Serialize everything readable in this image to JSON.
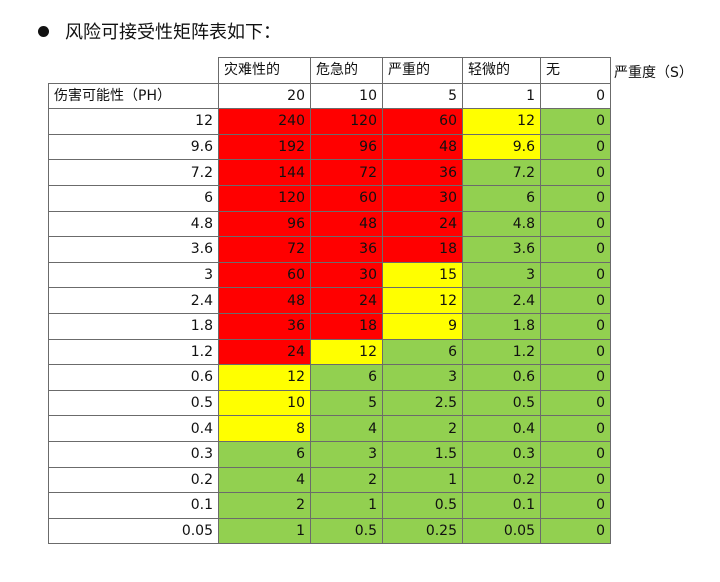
{
  "title": "风险可接受性矩阵表如下：",
  "severity_axis_label": "严重度（S）",
  "severity_headers": [
    "灾难性的",
    "危急的",
    "严重的",
    "轻微的",
    "无"
  ],
  "ph_label": "伤害可能性（PH）",
  "severity_values": [
    "20",
    "10",
    "5",
    "1",
    "0"
  ],
  "rows": [
    {
      "ph": "12",
      "cells": [
        "240",
        "120",
        "60",
        "12",
        "0"
      ],
      "colors": [
        "red",
        "red",
        "red",
        "yellow",
        "green"
      ]
    },
    {
      "ph": "9.6",
      "cells": [
        "192",
        "96",
        "48",
        "9.6",
        "0"
      ],
      "colors": [
        "red",
        "red",
        "red",
        "yellow",
        "green"
      ]
    },
    {
      "ph": "7.2",
      "cells": [
        "144",
        "72",
        "36",
        "7.2",
        "0"
      ],
      "colors": [
        "red",
        "red",
        "red",
        "green",
        "green"
      ]
    },
    {
      "ph": "6",
      "cells": [
        "120",
        "60",
        "30",
        "6",
        "0"
      ],
      "colors": [
        "red",
        "red",
        "red",
        "green",
        "green"
      ]
    },
    {
      "ph": "4.8",
      "cells": [
        "96",
        "48",
        "24",
        "4.8",
        "0"
      ],
      "colors": [
        "red",
        "red",
        "red",
        "green",
        "green"
      ]
    },
    {
      "ph": "3.6",
      "cells": [
        "72",
        "36",
        "18",
        "3.6",
        "0"
      ],
      "colors": [
        "red",
        "red",
        "red",
        "green",
        "green"
      ]
    },
    {
      "ph": "3",
      "cells": [
        "60",
        "30",
        "15",
        "3",
        "0"
      ],
      "colors": [
        "red",
        "red",
        "yellow",
        "green",
        "green"
      ]
    },
    {
      "ph": "2.4",
      "cells": [
        "48",
        "24",
        "12",
        "2.4",
        "0"
      ],
      "colors": [
        "red",
        "red",
        "yellow",
        "green",
        "green"
      ]
    },
    {
      "ph": "1.8",
      "cells": [
        "36",
        "18",
        "9",
        "1.8",
        "0"
      ],
      "colors": [
        "red",
        "red",
        "yellow",
        "green",
        "green"
      ]
    },
    {
      "ph": "1.2",
      "cells": [
        "24",
        "12",
        "6",
        "1.2",
        "0"
      ],
      "colors": [
        "red",
        "yellow",
        "green",
        "green",
        "green"
      ]
    },
    {
      "ph": "0.6",
      "cells": [
        "12",
        "6",
        "3",
        "0.6",
        "0"
      ],
      "colors": [
        "yellow",
        "green",
        "green",
        "green",
        "green"
      ]
    },
    {
      "ph": "0.5",
      "cells": [
        "10",
        "5",
        "2.5",
        "0.5",
        "0"
      ],
      "colors": [
        "yellow",
        "green",
        "green",
        "green",
        "green"
      ]
    },
    {
      "ph": "0.4",
      "cells": [
        "8",
        "4",
        "2",
        "0.4",
        "0"
      ],
      "colors": [
        "yellow",
        "green",
        "green",
        "green",
        "green"
      ]
    },
    {
      "ph": "0.3",
      "cells": [
        "6",
        "3",
        "1.5",
        "0.3",
        "0"
      ],
      "colors": [
        "green",
        "green",
        "green",
        "green",
        "green"
      ]
    },
    {
      "ph": "0.2",
      "cells": [
        "4",
        "2",
        "1",
        "0.2",
        "0"
      ],
      "colors": [
        "green",
        "green",
        "green",
        "green",
        "green"
      ]
    },
    {
      "ph": "0.1",
      "cells": [
        "2",
        "1",
        "0.5",
        "0.1",
        "0"
      ],
      "colors": [
        "green",
        "green",
        "green",
        "green",
        "green"
      ]
    },
    {
      "ph": "0.05",
      "cells": [
        "1",
        "0.5",
        "0.25",
        "0.05",
        "0"
      ],
      "colors": [
        "green",
        "green",
        "green",
        "green",
        "green"
      ]
    }
  ],
  "palette": {
    "red": "#ff0000",
    "yellow": "#ffff00",
    "green": "#92d050"
  }
}
